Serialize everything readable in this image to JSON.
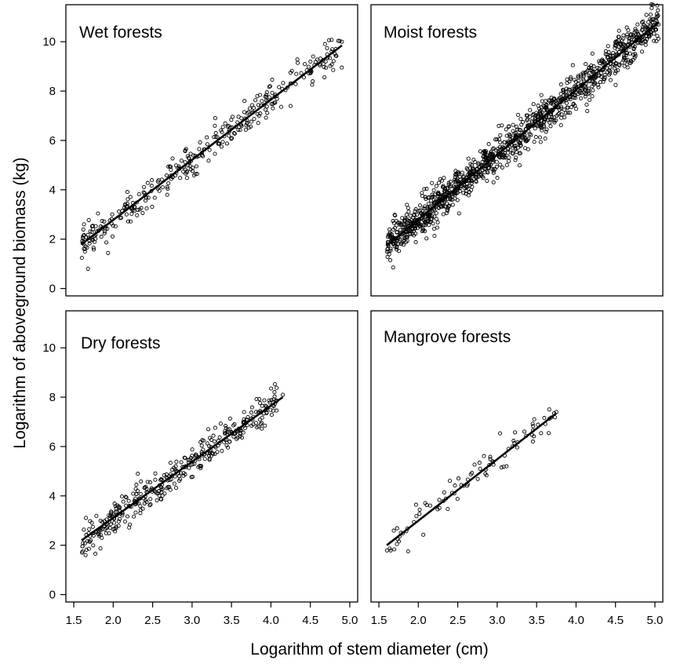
{
  "figure": {
    "xlabel": "Logarithm of stem diameter (cm)",
    "ylabel": "Logarithm of  aboveground biomass (kg)"
  },
  "chart_data": [
    {
      "type": "scatter",
      "title": "Wet forests",
      "xlim": [
        1.4,
        5.1
      ],
      "ylim": [
        -0.3,
        11.5
      ],
      "x_ticks": [
        "1.5",
        "2.0",
        "2.5",
        "3.0",
        "3.5",
        "4.0",
        "4.5",
        "5.0"
      ],
      "y_ticks": [
        "0",
        "2",
        "4",
        "6",
        "8",
        "10"
      ],
      "fit_line": {
        "x": [
          1.6,
          4.9
        ],
        "y": [
          1.8,
          9.85
        ]
      },
      "point_cloud": {
        "x_range": [
          1.6,
          4.9
        ],
        "count": 340,
        "spread": 0.35
      },
      "extremes": [
        {
          "x": 1.68,
          "y": 0.8
        },
        {
          "x": 4.9,
          "y": 10.0
        }
      ]
    },
    {
      "type": "scatter",
      "title": "Moist forests",
      "xlim": [
        1.4,
        5.1
      ],
      "ylim": [
        -0.3,
        11.5
      ],
      "x_ticks": [
        "1.5",
        "2.0",
        "2.5",
        "3.0",
        "3.5",
        "4.0",
        "4.5",
        "5.0"
      ],
      "y_ticks": [
        "0",
        "2",
        "4",
        "6",
        "8",
        "10"
      ],
      "fit_line": {
        "x": [
          1.6,
          5.05
        ],
        "y": [
          1.75,
          10.8
        ]
      },
      "point_cloud": {
        "x_range": [
          1.6,
          5.05
        ],
        "count": 1200,
        "spread": 0.38
      },
      "extremes": [
        {
          "x": 1.68,
          "y": 0.85
        },
        {
          "x": 5.02,
          "y": 11.0
        }
      ]
    },
    {
      "type": "scatter",
      "title": "Dry forests",
      "xlim": [
        1.4,
        5.1
      ],
      "ylim": [
        -0.3,
        11.5
      ],
      "x_ticks": [
        "1.5",
        "2.0",
        "2.5",
        "3.0",
        "3.5",
        "4.0",
        "4.5",
        "5.0"
      ],
      "y_ticks": [
        "0",
        "2",
        "4",
        "6",
        "8",
        "10"
      ],
      "fit_line": {
        "x": [
          1.6,
          4.15
        ],
        "y": [
          2.2,
          8.0
        ]
      },
      "point_cloud": {
        "x_range": [
          1.6,
          4.1
        ],
        "count": 380,
        "spread": 0.33
      },
      "extremes": [
        {
          "x": 1.65,
          "y": 1.6
        },
        {
          "x": 4.15,
          "y": 8.1
        }
      ]
    },
    {
      "type": "scatter",
      "title": "Mangrove forests",
      "xlim": [
        1.4,
        5.1
      ],
      "ylim": [
        -0.3,
        11.5
      ],
      "x_ticks": [
        "1.5",
        "2.0",
        "2.5",
        "3.0",
        "3.5",
        "4.0",
        "4.5",
        "5.0"
      ],
      "y_ticks": [
        "0",
        "2",
        "4",
        "6",
        "8",
        "10"
      ],
      "fit_line": {
        "x": [
          1.6,
          3.75
        ],
        "y": [
          2.0,
          7.35
        ]
      },
      "point_cloud": {
        "x_range": [
          1.6,
          3.75
        ],
        "count": 90,
        "spread": 0.28
      },
      "extremes": [
        {
          "x": 1.87,
          "y": 1.75
        },
        {
          "x": 3.75,
          "y": 7.4
        }
      ]
    }
  ]
}
